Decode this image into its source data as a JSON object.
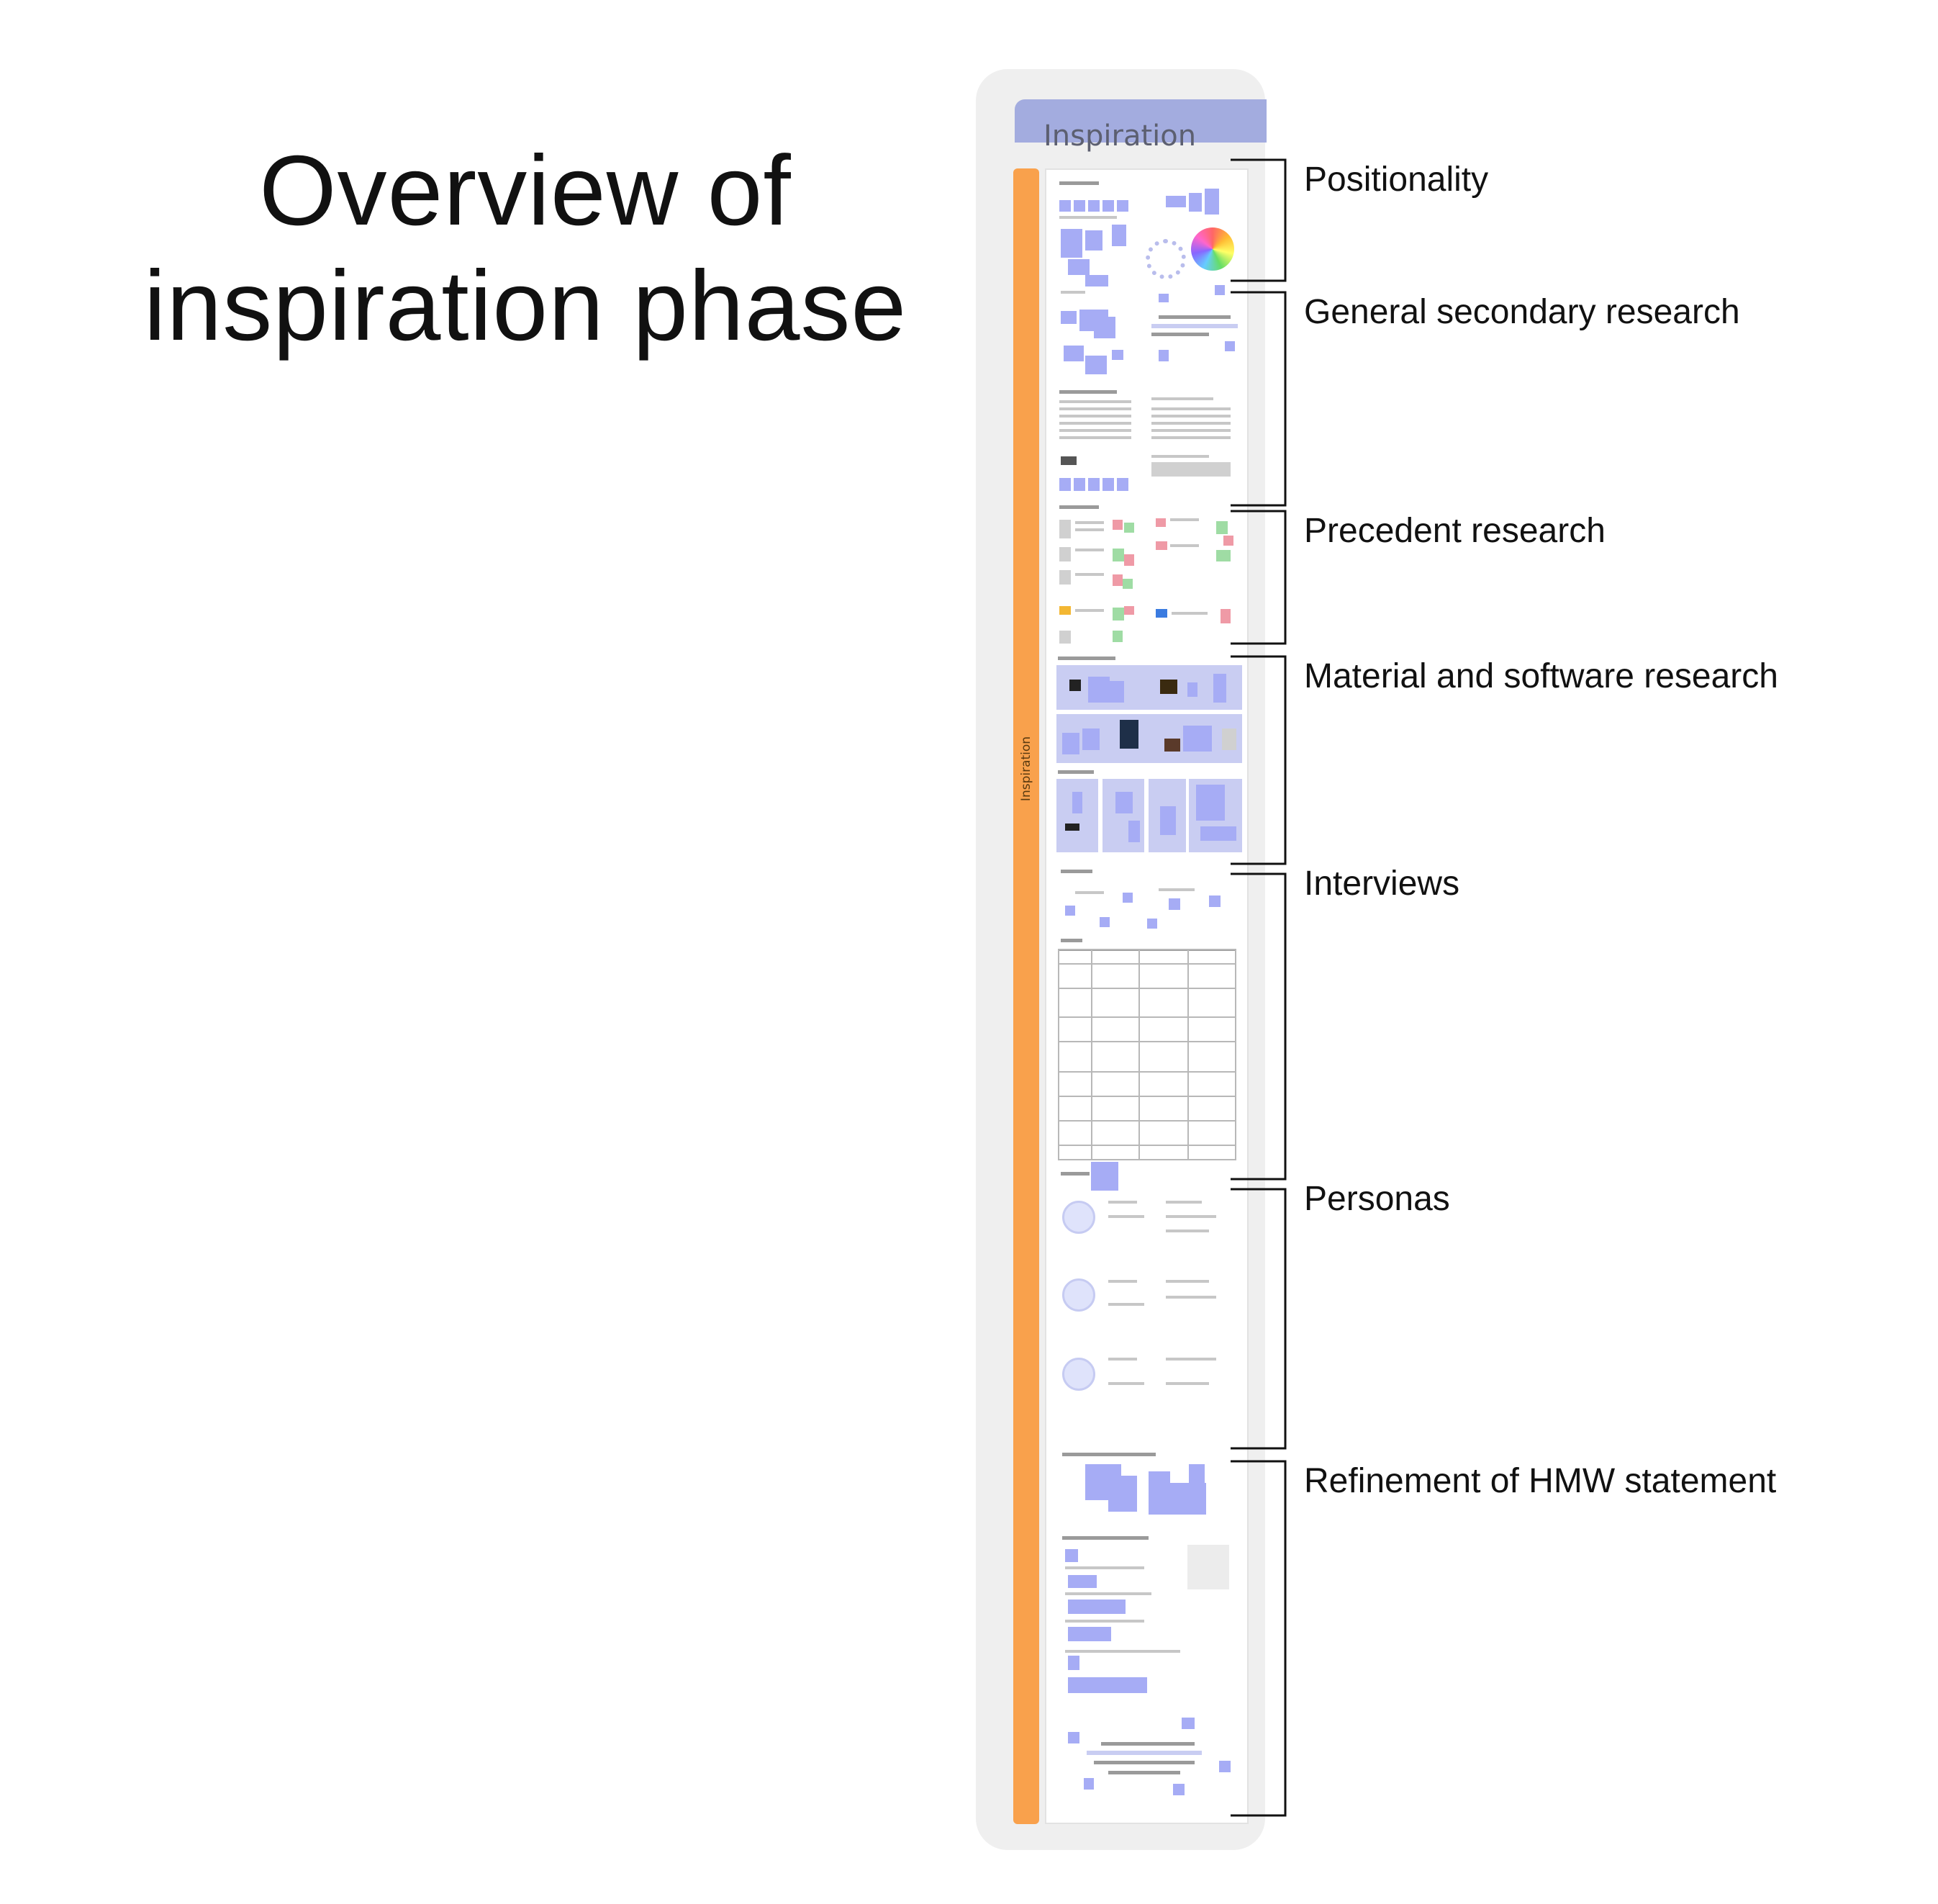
{
  "title": "Overview of inspiration phase",
  "board": {
    "header_label": "Inspiration",
    "side_label": "Inspiration"
  },
  "sections": [
    {
      "label": "Positionality"
    },
    {
      "label": "General secondary research"
    },
    {
      "label": "Precedent research"
    },
    {
      "label": "Material and software research"
    },
    {
      "label": "Interviews"
    },
    {
      "label": "Personas"
    },
    {
      "label": "Refinement of HMW statement"
    }
  ],
  "colors": {
    "accent_orange": "#f9a14c",
    "header_lavender": "#a3acdf",
    "sticky_note": "#a6acf5"
  }
}
